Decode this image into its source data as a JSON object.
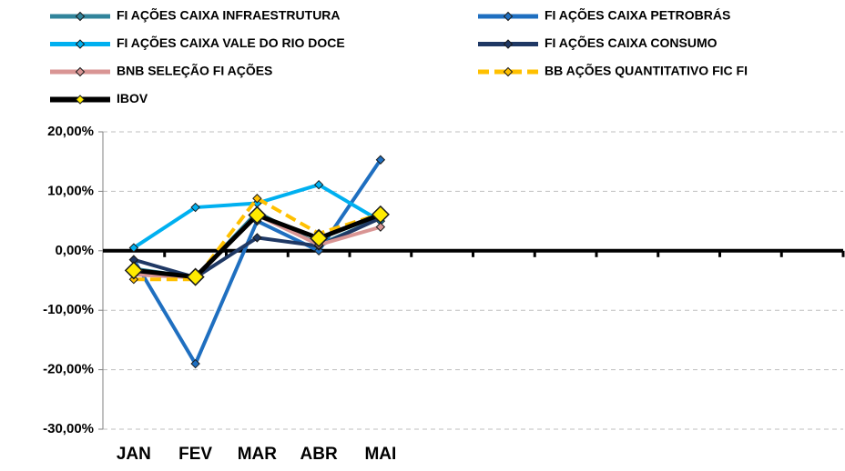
{
  "chart_data": {
    "type": "line",
    "categories": [
      "JAN",
      "FEV",
      "MAR",
      "ABR",
      "MAI",
      null,
      null,
      null,
      null,
      null,
      null,
      null
    ],
    "series": [
      {
        "name": "FI AÇÕES CAIXA INFRAESTRUTURA",
        "color": "#31849b",
        "values": [
          -3,
          -4.5,
          6.5,
          1,
          5.5,
          null,
          null,
          null,
          null,
          null,
          null,
          null
        ]
      },
      {
        "name": "FI AÇÕES CAIXA PETROBRÁS",
        "color": "#1f6fc0",
        "values": [
          -1.5,
          -19,
          5,
          0,
          15.3,
          null,
          null,
          null,
          null,
          null,
          null,
          null
        ]
      },
      {
        "name": "FI AÇÕES CAIXA VALE DO RIO DOCE",
        "color": "#00b0f0",
        "values": [
          0.5,
          7.3,
          8,
          11.1,
          5,
          null,
          null,
          null,
          null,
          null,
          null,
          null
        ]
      },
      {
        "name": "FI AÇÕES CAIXA CONSUMO",
        "color": "#1f3864",
        "values": [
          -1.5,
          -4.5,
          2.2,
          0.8,
          5.5,
          null,
          null,
          null,
          null,
          null,
          null,
          null
        ]
      },
      {
        "name": "BNB SELEÇÃO FI AÇÕES",
        "color": "#d99594",
        "values": [
          -4,
          -4.5,
          6,
          1,
          4,
          null,
          null,
          null,
          null,
          null,
          null,
          null
        ]
      },
      {
        "name": "BB AÇÕES QUANTITATIVO FIC FI",
        "color": "#ffc000",
        "dashed": true,
        "values": [
          -4.8,
          -4.8,
          8.8,
          2.9,
          6.2,
          null,
          null,
          null,
          null,
          null,
          null,
          null
        ]
      },
      {
        "name": "IBOV",
        "color": "#000000",
        "marker_color": "#ffeb00",
        "values": [
          -3.3,
          -4.4,
          6,
          2.1,
          6.1,
          null,
          null,
          null,
          null,
          null,
          null,
          null
        ]
      }
    ],
    "ylim": [
      -30,
      20
    ],
    "yticks": [
      {
        "value": -30,
        "label": "-30,00%"
      },
      {
        "value": -20,
        "label": "-20,00%"
      },
      {
        "value": -10,
        "label": "-10,00%"
      },
      {
        "value": 0,
        "label": "0,00%"
      },
      {
        "value": 10,
        "label": "10,00%"
      },
      {
        "value": 20,
        "label": "20,00%"
      }
    ],
    "grid": true
  }
}
